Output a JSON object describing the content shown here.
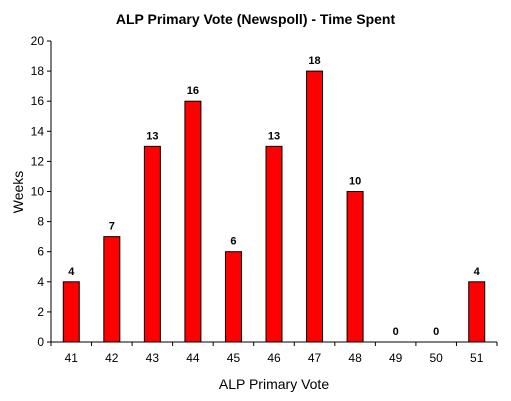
{
  "chart_data": {
    "type": "bar",
    "title": "ALP Primary Vote (Newspoll) - Time Spent",
    "xlabel": "ALP Primary Vote",
    "ylabel": "Weeks",
    "categories": [
      "41",
      "42",
      "43",
      "44",
      "45",
      "46",
      "47",
      "48",
      "49",
      "50",
      "51"
    ],
    "values": [
      4,
      7,
      13,
      16,
      6,
      13,
      18,
      10,
      0,
      0,
      4
    ],
    "data_labels": [
      "4",
      "7",
      "13",
      "16",
      "6",
      "13",
      "18",
      "10",
      "0",
      "0",
      "4"
    ],
    "ylim": [
      0,
      20
    ],
    "y_ticks": [
      "0",
      "2",
      "4",
      "6",
      "8",
      "10",
      "12",
      "14",
      "16",
      "18",
      "20"
    ],
    "grid": false,
    "legend": "none",
    "colors": {
      "bar_fill": "#ff0000",
      "bar_stroke": "#000000",
      "axis": "#000000",
      "background": "#ffffff"
    }
  }
}
